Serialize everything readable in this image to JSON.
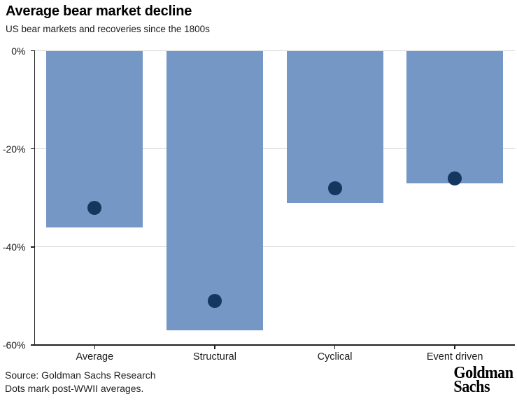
{
  "header": {
    "title": "Average bear market decline",
    "subtitle": "US bear markets and recoveries since the 1800s"
  },
  "footer": {
    "source_line1": "Source: Goldman Sachs Research",
    "source_line2": "Dots mark post-WWII averages.",
    "logo_line1": "Goldman",
    "logo_line2": "Sachs"
  },
  "colors": {
    "bar": "#7597c5",
    "dot": "#14375f",
    "grid": "#d9d9d9",
    "axis": "#1f1f1f",
    "text": "#1a1a1a"
  },
  "chart_data": {
    "type": "bar",
    "title": "Average bear market decline",
    "subtitle": "US bear markets and recoveries since the 1800s",
    "categories": [
      "Average",
      "Structural",
      "Cyclical",
      "Event driven"
    ],
    "series": [
      {
        "name": "Average bear market decline since the 1800s",
        "mark": "bar",
        "values": [
          -36,
          -57,
          -31,
          -27
        ]
      },
      {
        "name": "Post-WWII averages (dots)",
        "mark": "dot",
        "values": [
          -32,
          -51,
          -28,
          -26
        ]
      }
    ],
    "ylim": [
      -60,
      0
    ],
    "yticks": [
      {
        "value": 0,
        "label": "0%"
      },
      {
        "value": -20,
        "label": "-20%"
      },
      {
        "value": -40,
        "label": "-40%"
      },
      {
        "value": -60,
        "label": "-60%"
      }
    ],
    "grid": "horizontal-light",
    "legend": "none",
    "annotations": [
      "Dots mark post-WWII averages."
    ]
  }
}
